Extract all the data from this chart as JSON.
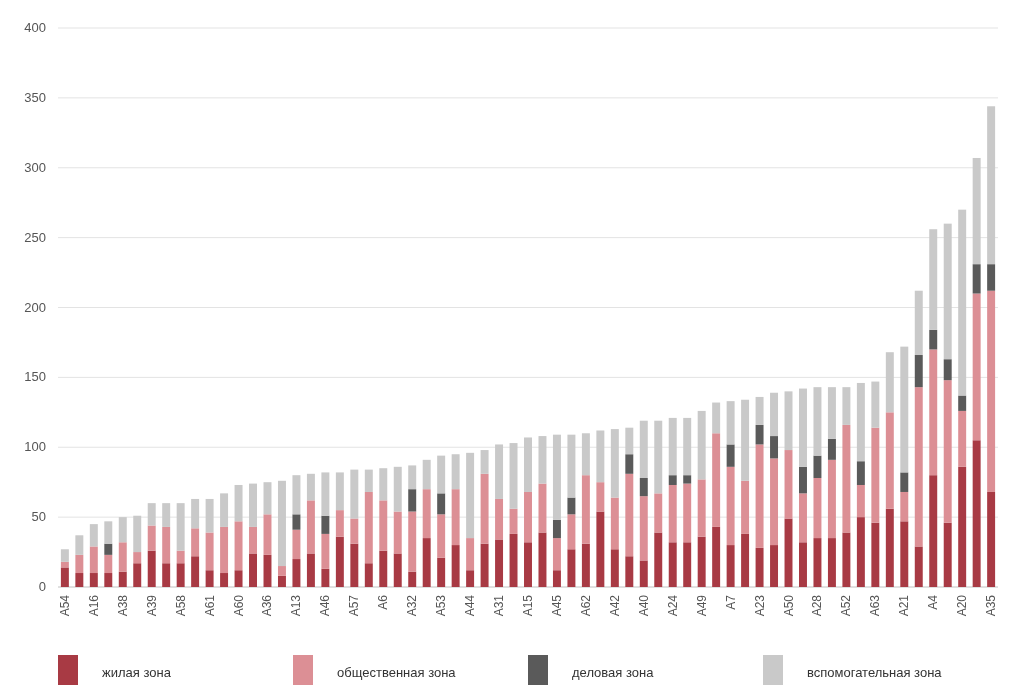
{
  "chart_data": {
    "type": "bar",
    "stacked": true,
    "categories": [
      "A54",
      null,
      "A16",
      null,
      "A38",
      null,
      "A39",
      null,
      "A58",
      null,
      "A61",
      null,
      "A60",
      null,
      "A36",
      null,
      "A13",
      null,
      "A46",
      null,
      "A57",
      null,
      "A6",
      null,
      "A32",
      null,
      "A53",
      null,
      "A44",
      null,
      "A31",
      null,
      "A15",
      null,
      "A45",
      null,
      "A62",
      null,
      "A42",
      null,
      "A40",
      null,
      "A24",
      null,
      "A49",
      null,
      "A7",
      null,
      "A23",
      null,
      "A50",
      null,
      "A28",
      null,
      "A52",
      null,
      "A63",
      null,
      "A21",
      null,
      "A4",
      null,
      "A20",
      null,
      "A35"
    ],
    "series": [
      {
        "name": "жилая зона",
        "color": "#a83a44",
        "values": [
          14,
          10,
          10,
          10,
          11,
          17,
          26,
          17,
          17,
          22,
          12,
          10,
          12,
          24,
          23,
          8,
          20,
          24,
          13,
          36,
          31,
          17,
          26,
          24,
          11,
          35,
          21,
          30,
          12,
          31,
          34,
          38,
          32,
          39,
          12,
          27,
          31,
          54,
          27,
          22,
          19,
          39,
          32,
          32,
          36,
          43,
          30,
          38,
          28,
          30,
          49,
          32,
          35,
          35,
          39,
          50,
          46,
          56,
          47,
          29,
          80,
          46,
          86,
          105,
          68
        ]
      },
      {
        "name": "общественная зона",
        "color": "#dc8f95",
        "values": [
          4,
          13,
          19,
          13,
          21,
          8,
          18,
          26,
          9,
          20,
          27,
          33,
          35,
          19,
          29,
          7,
          21,
          38,
          25,
          19,
          18,
          51,
          36,
          30,
          43,
          35,
          31,
          40,
          23,
          50,
          29,
          18,
          36,
          35,
          23,
          25,
          49,
          21,
          37,
          59,
          46,
          28,
          41,
          42,
          41,
          67,
          56,
          38,
          74,
          62,
          49,
          35,
          43,
          56,
          77,
          23,
          68,
          69,
          21,
          114,
          90,
          102,
          40,
          105,
          144
        ]
      },
      {
        "name": "деловая зона",
        "color": "#5a5a5a",
        "values": [
          0,
          0,
          0,
          8,
          0,
          0,
          0,
          0,
          0,
          0,
          0,
          0,
          0,
          0,
          0,
          0,
          11,
          0,
          13,
          0,
          0,
          0,
          0,
          0,
          16,
          0,
          15,
          0,
          0,
          0,
          0,
          0,
          0,
          0,
          13,
          12,
          0,
          0,
          0,
          14,
          13,
          0,
          7,
          6,
          0,
          0,
          16,
          0,
          14,
          16,
          0,
          19,
          16,
          15,
          0,
          17,
          0,
          0,
          14,
          23,
          14,
          15,
          11,
          21,
          19
        ]
      },
      {
        "name": "вспомогательная зона",
        "color": "#c9c9c9",
        "values": [
          9,
          14,
          16,
          16,
          18,
          26,
          16,
          17,
          34,
          21,
          24,
          24,
          26,
          31,
          23,
          61,
          28,
          19,
          31,
          27,
          35,
          16,
          23,
          32,
          17,
          21,
          27,
          25,
          61,
          17,
          39,
          47,
          39,
          34,
          61,
          45,
          30,
          37,
          49,
          19,
          41,
          52,
          41,
          41,
          49,
          22,
          31,
          58,
          20,
          31,
          42,
          56,
          49,
          37,
          27,
          56,
          33,
          43,
          90,
          46,
          72,
          97,
          133,
          76,
          113
        ]
      }
    ],
    "ylim": [
      0,
      400
    ],
    "yticks": [
      0,
      50,
      100,
      150,
      200,
      250,
      300,
      350,
      400
    ],
    "grid": "y",
    "legend": "bottom"
  }
}
